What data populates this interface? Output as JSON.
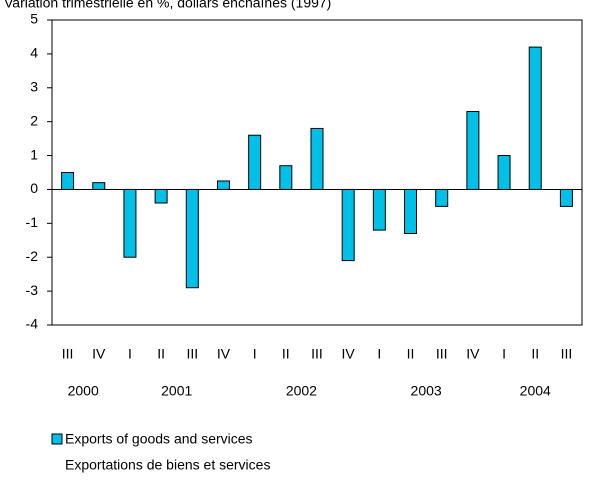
{
  "chart_data": {
    "type": "bar",
    "title": "Variation trimestrielle en %, dollars enchaînés (1997)",
    "categories": [
      "III",
      "IV",
      "I",
      "II",
      "III",
      "IV",
      "I",
      "II",
      "III",
      "IV",
      "I",
      "II",
      "III",
      "IV",
      "I",
      "II",
      "III"
    ],
    "years": [
      "2000",
      "2001",
      "2002",
      "2003",
      "2004"
    ],
    "series": [
      {
        "name": "Exports of goods and services",
        "name_fr": "Exportations de biens et services",
        "color": "#00c0e8",
        "values": [
          0.5,
          0.2,
          -2.0,
          -0.4,
          -2.9,
          0.25,
          1.6,
          0.7,
          1.8,
          -2.1,
          -1.2,
          -1.3,
          -0.5,
          2.3,
          1.0,
          4.2,
          -0.5
        ]
      }
    ],
    "ylim": [
      -4,
      5
    ],
    "yticks": [
      -4,
      -3,
      -2,
      -1,
      0,
      1,
      2,
      3,
      4,
      5
    ]
  }
}
